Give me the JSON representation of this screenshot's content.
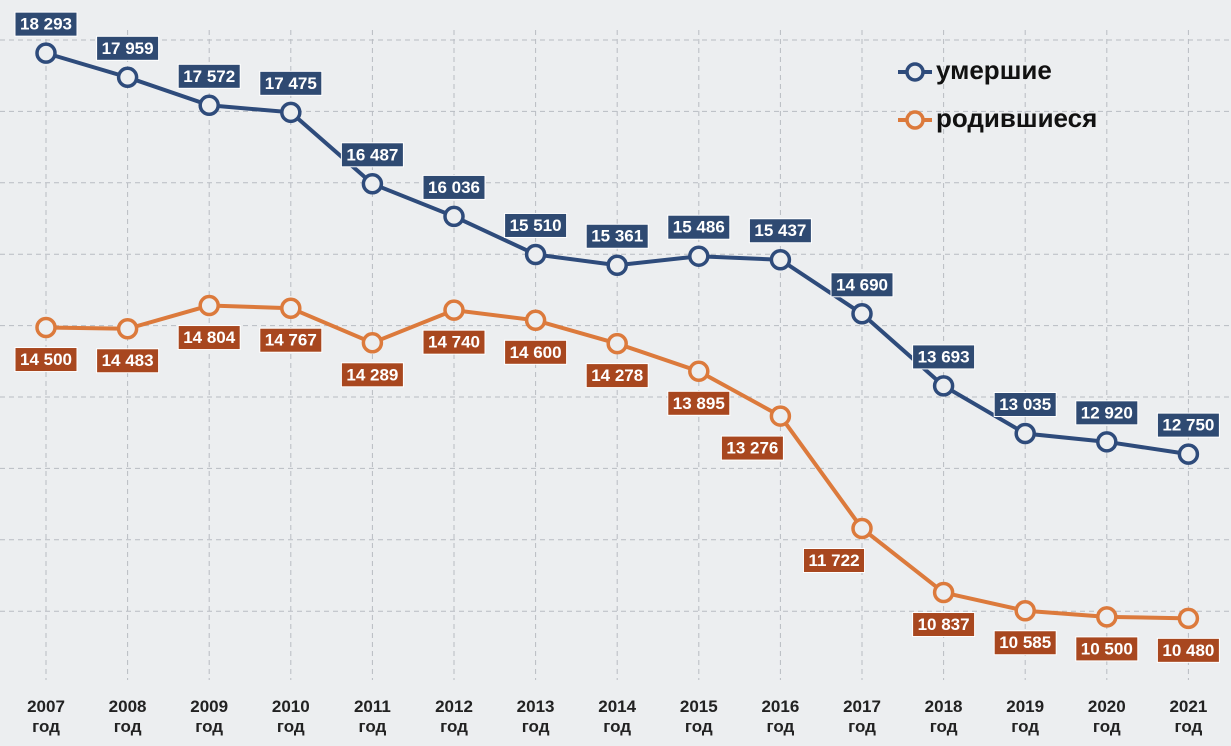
{
  "chart_data": {
    "type": "line",
    "categories": [
      "2007 год",
      "2008 год",
      "2009 год",
      "2010 год",
      "2011 год",
      "2012 год",
      "2013 год",
      "2014 год",
      "2015 год",
      "2016 год",
      "2017 год",
      "2018 год",
      "2019 год",
      "2020 год",
      "2021 год"
    ],
    "series": [
      {
        "name": "умершие",
        "color": "#2e4b7b",
        "label_color": "#2f4a72",
        "values": [
          18293,
          17959,
          17572,
          17475,
          16487,
          16036,
          15510,
          15361,
          15486,
          15437,
          14690,
          13693,
          13035,
          12920,
          12750
        ],
        "value_labels": [
          "18 293",
          "17 959",
          "17 572",
          "17 475",
          "16 487",
          "16 036",
          "15 510",
          "15 361",
          "15 486",
          "15 437",
          "14 690",
          "13 693",
          "13 035",
          "12 920",
          "12 750"
        ]
      },
      {
        "name": "родившиеся",
        "color": "#dc7a3c",
        "label_color": "#a8471f",
        "values": [
          14500,
          14483,
          14804,
          14767,
          14289,
          14740,
          14600,
          14278,
          13895,
          13276,
          11722,
          10837,
          10585,
          10500,
          10480
        ],
        "value_labels": [
          "14 500",
          "14 483",
          "14 804",
          "14 767",
          "14 289",
          "14 740",
          "14 600",
          "14 278",
          "13 895",
          "13 276",
          "11 722",
          "10 837",
          "10 585",
          "10 500",
          "10 480"
        ]
      }
    ],
    "ylim": [
      9600,
      19000
    ],
    "grid": true,
    "legend": "top-right"
  }
}
